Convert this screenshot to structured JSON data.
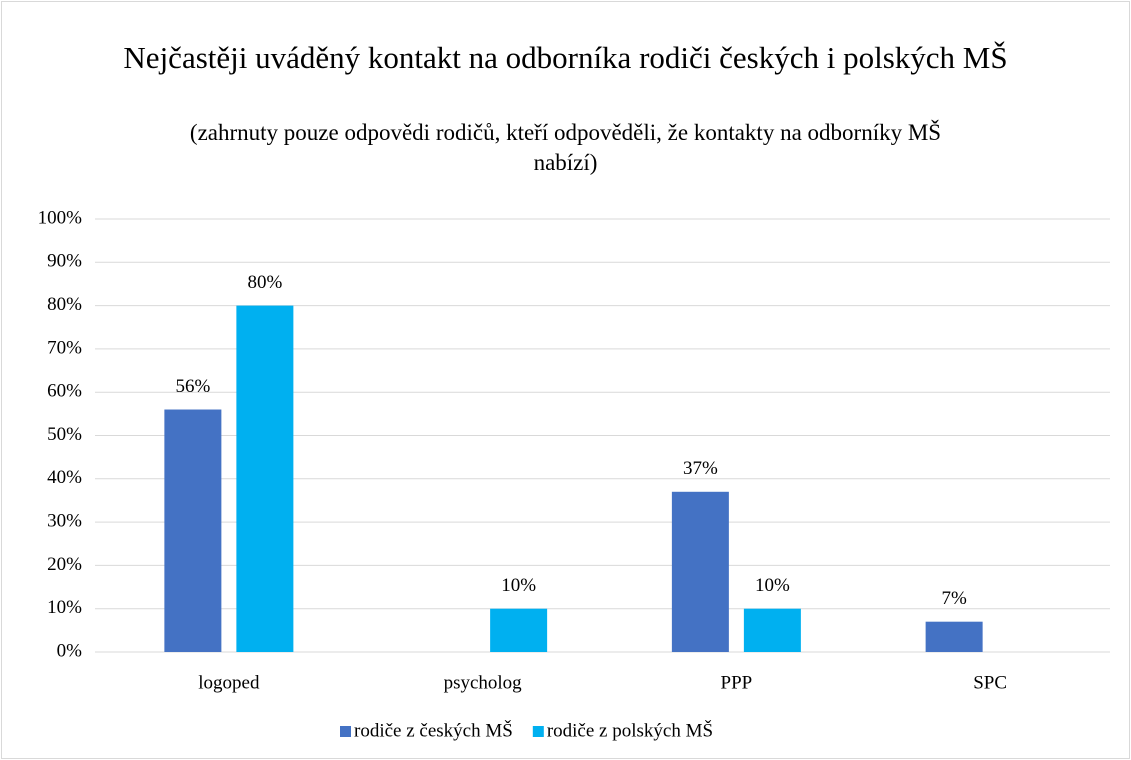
{
  "chart_data": {
    "type": "bar",
    "title": "Nejčastěji uváděný kontakt na odborníka rodiči českých i polských MŠ",
    "subtitle": "(zahrnuty pouze odpovědi rodičů, kteří odpověděli, že kontakty na odborníky MŠ nabízí)",
    "categories": [
      "logoped",
      "psycholog",
      "PPP",
      "SPC"
    ],
    "series": [
      {
        "name": "rodiče z českých MŠ",
        "color": "#4472c4",
        "values": [
          56,
          null,
          37,
          7
        ],
        "value_labels": [
          "56%",
          null,
          "37%",
          "7%"
        ]
      },
      {
        "name": "rodiče z polských MŠ",
        "color": "#00b0f0",
        "values": [
          80,
          10,
          10,
          null
        ],
        "value_labels": [
          "80%",
          "10%",
          "10%",
          null
        ]
      }
    ],
    "ylim": [
      0,
      100
    ],
    "yticks": [
      {
        "value": 0,
        "label": "0%"
      },
      {
        "value": 10,
        "label": "10%"
      },
      {
        "value": 20,
        "label": "20%"
      },
      {
        "value": 30,
        "label": "30%"
      },
      {
        "value": 40,
        "label": "40%"
      },
      {
        "value": 50,
        "label": "50%"
      },
      {
        "value": 60,
        "label": "60%"
      },
      {
        "value": 70,
        "label": "70%"
      },
      {
        "value": 80,
        "label": "80%"
      },
      {
        "value": 90,
        "label": "90%"
      },
      {
        "value": 100,
        "label": "100%"
      }
    ],
    "grid": true,
    "legend": "bottom"
  }
}
